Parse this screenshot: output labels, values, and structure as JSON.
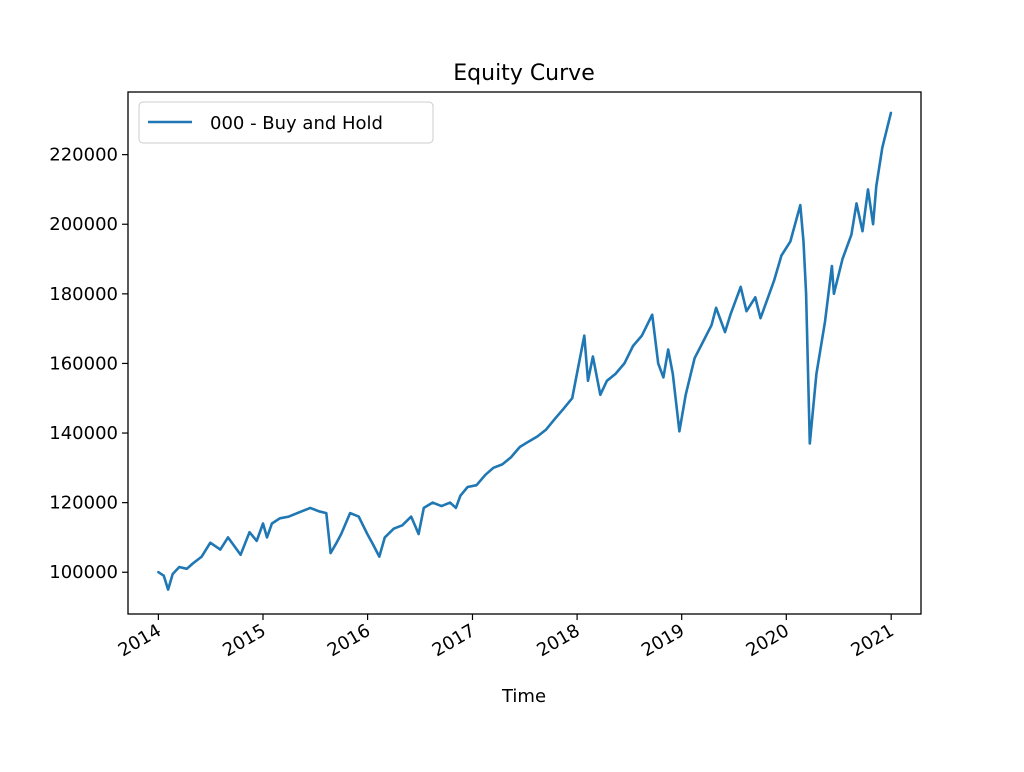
{
  "chart_data": {
    "type": "line",
    "title": "Equity Curve",
    "xlabel": "Time",
    "ylabel": "",
    "x_ticks": [
      "2014",
      "2015",
      "2016",
      "2017",
      "2018",
      "2019",
      "2020",
      "2021"
    ],
    "y_ticks": [
      "100000",
      "120000",
      "140000",
      "160000",
      "180000",
      "200000",
      "220000"
    ],
    "xlim": [
      "2013-09-17",
      "2021-04-15"
    ],
    "ylim": [
      88000,
      238000
    ],
    "grid": false,
    "legend_position": "upper-left",
    "series": [
      {
        "name": "000 - Buy and Hold",
        "color": "#1f77b4",
        "x": [
          "2014-01-01",
          "2014-01-20",
          "2014-02-04",
          "2014-02-20",
          "2014-03-15",
          "2014-04-10",
          "2014-05-01",
          "2014-06-01",
          "2014-07-01",
          "2014-08-05",
          "2014-09-01",
          "2014-10-15",
          "2014-11-15",
          "2014-12-10",
          "2015-01-01",
          "2015-01-15",
          "2015-02-01",
          "2015-03-01",
          "2015-04-01",
          "2015-05-01",
          "2015-06-15",
          "2015-07-15",
          "2015-08-10",
          "2015-08-25",
          "2015-09-15",
          "2015-10-01",
          "2015-11-01",
          "2015-12-01",
          "2015-12-31",
          "2016-01-20",
          "2016-02-11",
          "2016-03-01",
          "2016-04-01",
          "2016-05-01",
          "2016-06-01",
          "2016-06-27",
          "2016-07-15",
          "2016-08-15",
          "2016-09-15",
          "2016-10-15",
          "2016-11-04",
          "2016-11-20",
          "2016-12-15",
          "2017-01-15",
          "2017-02-15",
          "2017-03-15",
          "2017-04-15",
          "2017-05-15",
          "2017-06-15",
          "2017-07-15",
          "2017-08-15",
          "2017-09-15",
          "2017-10-15",
          "2017-11-15",
          "2017-12-15",
          "2018-01-26",
          "2018-02-08",
          "2018-02-25",
          "2018-03-23",
          "2018-04-15",
          "2018-05-15",
          "2018-06-15",
          "2018-07-15",
          "2018-08-15",
          "2018-09-20",
          "2018-10-11",
          "2018-10-29",
          "2018-11-15",
          "2018-12-01",
          "2018-12-24",
          "2019-01-15",
          "2019-02-15",
          "2019-03-15",
          "2019-04-15",
          "2019-05-01",
          "2019-06-01",
          "2019-06-20",
          "2019-07-26",
          "2019-08-15",
          "2019-09-15",
          "2019-10-03",
          "2019-10-25",
          "2019-11-20",
          "2019-12-15",
          "2020-01-15",
          "2020-02-19",
          "2020-03-01",
          "2020-03-10",
          "2020-03-23",
          "2020-04-15",
          "2020-05-15",
          "2020-06-08",
          "2020-06-15",
          "2020-07-15",
          "2020-08-15",
          "2020-09-02",
          "2020-09-23",
          "2020-10-12",
          "2020-10-30",
          "2020-11-10",
          "2020-12-01",
          "2020-12-31"
        ],
        "values": [
          100000,
          99000,
          95000,
          99500,
          101500,
          101000,
          102500,
          104500,
          108500,
          106500,
          110000,
          105000,
          111500,
          109000,
          114000,
          110000,
          114000,
          115500,
          116000,
          117000,
          118500,
          117500,
          117000,
          105500,
          108500,
          111000,
          117000,
          116000,
          111000,
          108000,
          104500,
          110000,
          112500,
          113500,
          116000,
          111000,
          118500,
          120000,
          119000,
          120000,
          118500,
          122000,
          124500,
          125000,
          128000,
          130000,
          131000,
          133000,
          136000,
          137500,
          139000,
          141000,
          144000,
          147000,
          150000,
          168000,
          155000,
          162000,
          151000,
          155000,
          157000,
          160000,
          165000,
          168000,
          174000,
          160000,
          156000,
          164000,
          157000,
          140500,
          151000,
          161500,
          166000,
          171000,
          176000,
          169000,
          174000,
          182000,
          175000,
          179000,
          173000,
          178000,
          184000,
          191000,
          195000,
          205500,
          195000,
          180000,
          137000,
          157000,
          172000,
          188000,
          180000,
          190000,
          197000,
          206000,
          198000,
          210000,
          200000,
          211000,
          222000,
          232000
        ]
      }
    ]
  }
}
